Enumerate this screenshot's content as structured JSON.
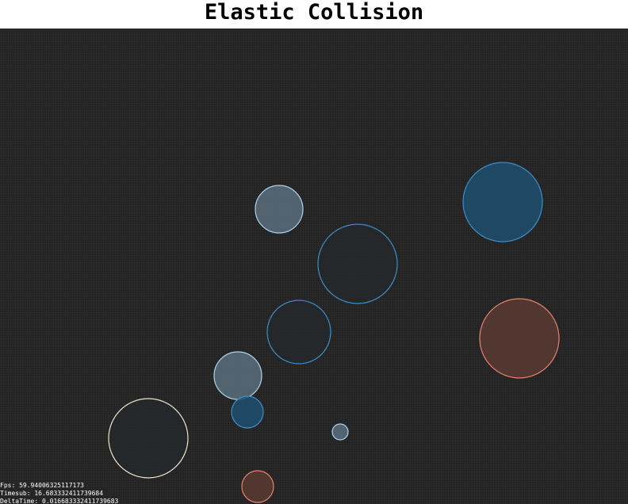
{
  "page": {
    "title": "Elastic Collision"
  },
  "stats": {
    "fps_label": "Fps:",
    "fps_value": "59.94006325117173",
    "timesub_label": "Timesub:",
    "timesub_value": "16.683332411739684",
    "deltatime_label": "DeltaTime:",
    "deltatime_value": "0.016683332411739683"
  },
  "colors": {
    "background": "#262626",
    "blue_stroke": "#3c8fc8",
    "blue_fill": "#1f4f70",
    "light_blue_stroke": "#a9d4ee",
    "light_blue_fill": "#5a6f7c",
    "salmon_stroke": "#e6826c",
    "salmon_fill": "#5a3a33",
    "cream_stroke": "#ece6c8",
    "cream_fill": "#2d2d2a"
  },
  "balls": [
    {
      "name": "ball-large-blue-filled",
      "color": "blue",
      "fill": "solid"
    },
    {
      "name": "ball-large-blue-outline",
      "color": "blue",
      "fill": "dark"
    },
    {
      "name": "ball-light-blue-top",
      "color": "light_blue",
      "fill": "solid"
    },
    {
      "name": "ball-medium-blue-outline",
      "color": "blue",
      "fill": "dark"
    },
    {
      "name": "ball-large-salmon",
      "color": "salmon",
      "fill": "solid"
    },
    {
      "name": "ball-light-blue-mid",
      "color": "light_blue",
      "fill": "solid"
    },
    {
      "name": "ball-small-blue",
      "color": "blue",
      "fill": "solid"
    },
    {
      "name": "ball-tiny-light-blue",
      "color": "light_blue",
      "fill": "solid"
    },
    {
      "name": "ball-large-cream",
      "color": "cream",
      "fill": "dark"
    },
    {
      "name": "ball-small-salmon",
      "color": "salmon",
      "fill": "solid"
    }
  ]
}
